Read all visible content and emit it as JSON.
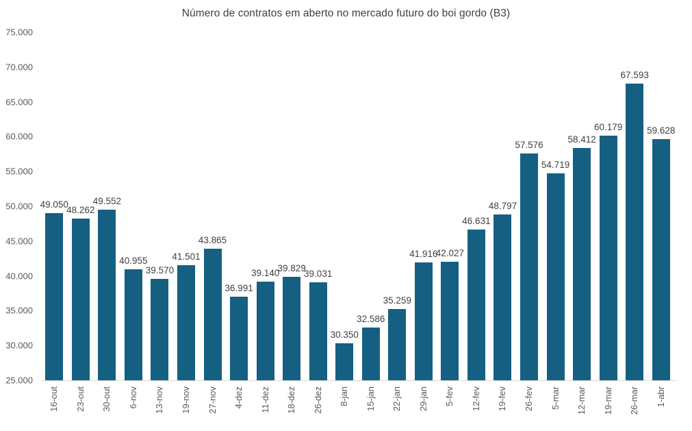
{
  "chart_data": {
    "type": "bar",
    "title": "Número de contratos em aberto no mercado futuro do boi gordo (B3)",
    "categories": [
      "16-out",
      "23-out",
      "30-out",
      "6-nov",
      "13-nov",
      "19-nov",
      "27-nov",
      "4-dez",
      "11-dez",
      "18-dez",
      "26-dez",
      "8-jan",
      "15-jan",
      "22-jan",
      "29-jan",
      "5-fev",
      "12-fev",
      "19-fev",
      "26-fev",
      "5-mar",
      "12-mar",
      "19-mar",
      "26-mar",
      "1-abr"
    ],
    "values": [
      49050,
      48262,
      49552,
      40955,
      39570,
      41501,
      43865,
      36991,
      39140,
      39829,
      39031,
      30350,
      32586,
      35259,
      41916,
      42027,
      46631,
      48797,
      57576,
      54719,
      58412,
      60179,
      67593,
      59628
    ],
    "data_labels": [
      "49.050",
      "48.262",
      "49.552",
      "40.955",
      "39.570",
      "41.501",
      "43.865",
      "36.991",
      "39.140",
      "39.829",
      "39.031",
      "30.350",
      "32.586",
      "35.259",
      "41.916",
      "42.027",
      "46.631",
      "48.797",
      "57.576",
      "54.719",
      "58.412",
      "60.179",
      "67.593",
      "59.628"
    ],
    "xlabel": "",
    "ylabel": "",
    "ylim": [
      25000,
      75000
    ],
    "ytick_step": 5000,
    "ytick_labels": [
      "25.000",
      "30.000",
      "35.000",
      "40.000",
      "45.000",
      "50.000",
      "55.000",
      "60.000",
      "65.000",
      "70.000",
      "75.000"
    ],
    "grid": false,
    "legend_position": "none",
    "colors": {
      "bar": "#156082",
      "data_label": "#404040",
      "axis_label": "#595959",
      "title": "#404040",
      "baseline": "#d9d9d9",
      "background": "#ffffff"
    }
  }
}
